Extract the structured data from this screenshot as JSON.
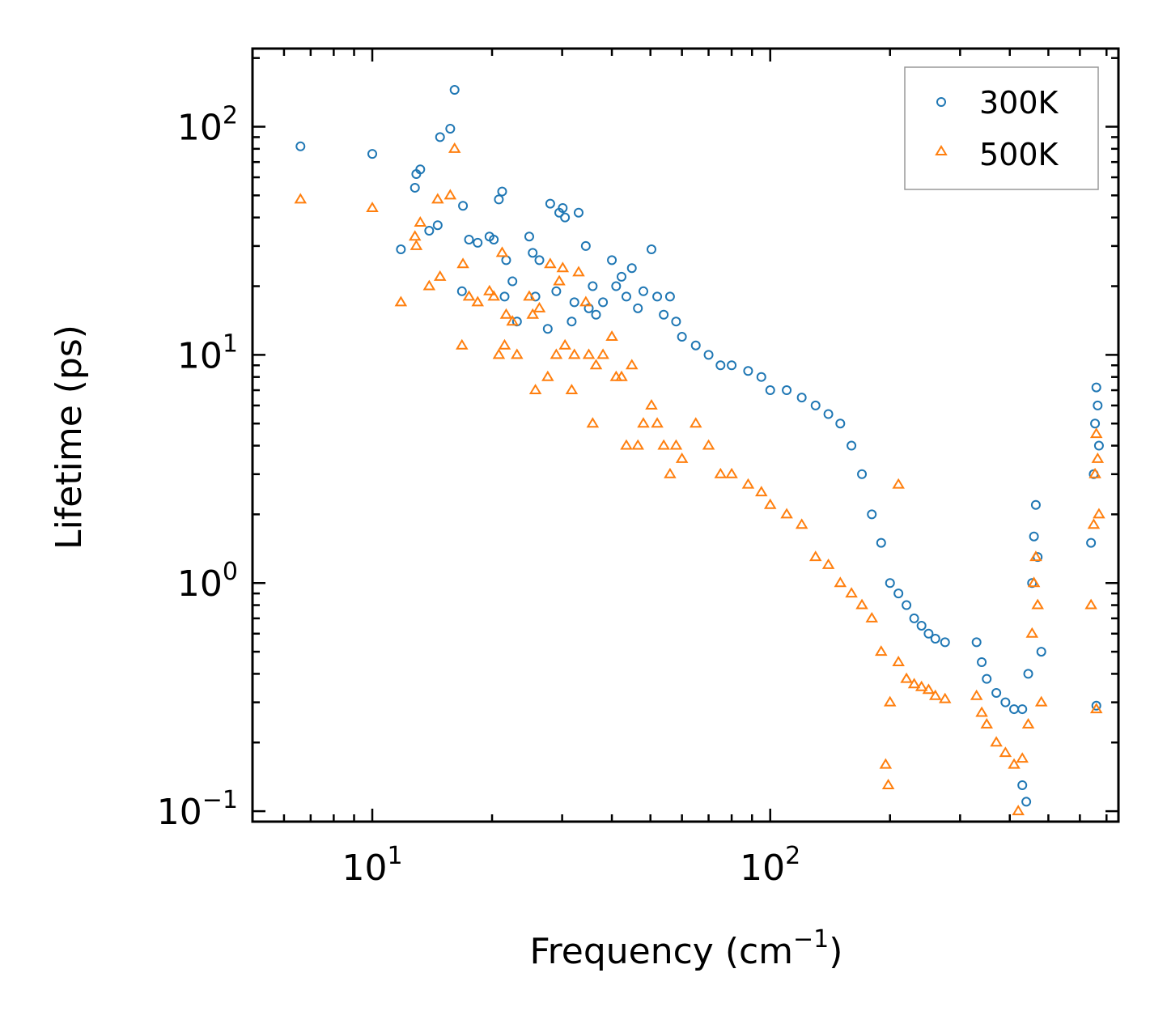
{
  "chart_data": {
    "type": "scatter",
    "title": "",
    "xscale": "log",
    "yscale": "log",
    "xlabel_main": "Frequency (cm",
    "xlabel_sup": "−1",
    "xlabel_end": ")",
    "ylabel": "Lifetime (ps)",
    "xlim": [
      5,
      750
    ],
    "ylim": [
      0.09,
      220
    ],
    "x_major_ticks": [
      10,
      100
    ],
    "x_tick_labels": [
      {
        "base": "10",
        "exp": "1"
      },
      {
        "base": "10",
        "exp": "2"
      }
    ],
    "y_major_ticks": [
      0.1,
      1,
      10,
      100
    ],
    "y_tick_labels": [
      {
        "base": "10",
        "exp": "−1"
      },
      {
        "base": "10",
        "exp": "0"
      },
      {
        "base": "10",
        "exp": "1"
      },
      {
        "base": "10",
        "exp": "2"
      }
    ],
    "legend_position": "top-right",
    "series": [
      {
        "name": "300K",
        "marker": "circle",
        "color": "#1f77b4",
        "points": [
          [
            6.6,
            82
          ],
          [
            10,
            76
          ],
          [
            11.8,
            29
          ],
          [
            12.8,
            54
          ],
          [
            12.9,
            62
          ],
          [
            13.2,
            65
          ],
          [
            13.9,
            35
          ],
          [
            14.6,
            37
          ],
          [
            14.8,
            90
          ],
          [
            15.7,
            98
          ],
          [
            16.1,
            145
          ],
          [
            16.8,
            19
          ],
          [
            16.9,
            45
          ],
          [
            17.5,
            32
          ],
          [
            18.4,
            31
          ],
          [
            19.7,
            33
          ],
          [
            20.2,
            32
          ],
          [
            20.8,
            48
          ],
          [
            21.2,
            52
          ],
          [
            21.5,
            18
          ],
          [
            21.7,
            26
          ],
          [
            22.5,
            21
          ],
          [
            23.1,
            14
          ],
          [
            24.8,
            33
          ],
          [
            25.3,
            28
          ],
          [
            25.7,
            18
          ],
          [
            26.3,
            26
          ],
          [
            27.6,
            13
          ],
          [
            28,
            46
          ],
          [
            29,
            19
          ],
          [
            29.5,
            42
          ],
          [
            30.1,
            44
          ],
          [
            30.5,
            40
          ],
          [
            31.7,
            14
          ],
          [
            32.2,
            17
          ],
          [
            33,
            42
          ],
          [
            34.4,
            30
          ],
          [
            35,
            16
          ],
          [
            35.8,
            20
          ],
          [
            36.5,
            15
          ],
          [
            38,
            17
          ],
          [
            40,
            26
          ],
          [
            41,
            20
          ],
          [
            42.3,
            22
          ],
          [
            43.5,
            18
          ],
          [
            44.9,
            24
          ],
          [
            46.5,
            16
          ],
          [
            48,
            19
          ],
          [
            50.3,
            29
          ],
          [
            52,
            18
          ],
          [
            54,
            15
          ],
          [
            56,
            18
          ],
          [
            58,
            14
          ],
          [
            60,
            12
          ],
          [
            65,
            11
          ],
          [
            70,
            10
          ],
          [
            75,
            9
          ],
          [
            80,
            9
          ],
          [
            88,
            8.5
          ],
          [
            95,
            8
          ],
          [
            100,
            7
          ],
          [
            110,
            7
          ],
          [
            120,
            6.5
          ],
          [
            130,
            6
          ],
          [
            140,
            5.5
          ],
          [
            150,
            5
          ],
          [
            160,
            4
          ],
          [
            170,
            3
          ],
          [
            180,
            2
          ],
          [
            190,
            1.5
          ],
          [
            200,
            1
          ],
          [
            210,
            0.9
          ],
          [
            220,
            0.8
          ],
          [
            230,
            0.7
          ],
          [
            240,
            0.65
          ],
          [
            250,
            0.6
          ],
          [
            260,
            0.57
          ],
          [
            275,
            0.55
          ],
          [
            330,
            0.55
          ],
          [
            340,
            0.45
          ],
          [
            350,
            0.38
          ],
          [
            370,
            0.33
          ],
          [
            390,
            0.3
          ],
          [
            410,
            0.28
          ],
          [
            430,
            0.28
          ],
          [
            445,
            0.4
          ],
          [
            455,
            1
          ],
          [
            460,
            1.6
          ],
          [
            465,
            2.2
          ],
          [
            470,
            1.3
          ],
          [
            480,
            0.5
          ],
          [
            430,
            0.13
          ],
          [
            440,
            0.11
          ],
          [
            640,
            1.5
          ],
          [
            650,
            3
          ],
          [
            655,
            5
          ],
          [
            660,
            7.2
          ],
          [
            665,
            6
          ],
          [
            670,
            4
          ],
          [
            660,
            0.29
          ]
        ]
      },
      {
        "name": "500K",
        "marker": "triangle",
        "color": "#ff7f0e",
        "points": [
          [
            6.6,
            48
          ],
          [
            10,
            44
          ],
          [
            11.8,
            17
          ],
          [
            12.8,
            33
          ],
          [
            12.9,
            30
          ],
          [
            13.2,
            38
          ],
          [
            13.9,
            20
          ],
          [
            14.6,
            48
          ],
          [
            14.8,
            22
          ],
          [
            15.7,
            50
          ],
          [
            16.1,
            80
          ],
          [
            16.8,
            11
          ],
          [
            16.9,
            25
          ],
          [
            17.5,
            18
          ],
          [
            18.4,
            17
          ],
          [
            19.7,
            19
          ],
          [
            20.2,
            18
          ],
          [
            20.8,
            10
          ],
          [
            21.2,
            28
          ],
          [
            21.5,
            11
          ],
          [
            21.7,
            15
          ],
          [
            22.5,
            14
          ],
          [
            23.1,
            10
          ],
          [
            24.8,
            18
          ],
          [
            25.3,
            15
          ],
          [
            25.7,
            7
          ],
          [
            26.3,
            16
          ],
          [
            27.6,
            8
          ],
          [
            28,
            25
          ],
          [
            29,
            10
          ],
          [
            29.5,
            21
          ],
          [
            30.1,
            24
          ],
          [
            30.5,
            11
          ],
          [
            31.7,
            7
          ],
          [
            32.2,
            10
          ],
          [
            33,
            23
          ],
          [
            34.4,
            17
          ],
          [
            35,
            10
          ],
          [
            35.8,
            5
          ],
          [
            36.5,
            9
          ],
          [
            38,
            10
          ],
          [
            40,
            12
          ],
          [
            41,
            8
          ],
          [
            42.3,
            8
          ],
          [
            43.5,
            4
          ],
          [
            44.9,
            9
          ],
          [
            46.5,
            4
          ],
          [
            48,
            5
          ],
          [
            50.3,
            6
          ],
          [
            52,
            5
          ],
          [
            54,
            4
          ],
          [
            56,
            3
          ],
          [
            58,
            4
          ],
          [
            60,
            3.5
          ],
          [
            65,
            5
          ],
          [
            70,
            4
          ],
          [
            75,
            3
          ],
          [
            80,
            3
          ],
          [
            88,
            2.7
          ],
          [
            95,
            2.5
          ],
          [
            100,
            2.2
          ],
          [
            110,
            2
          ],
          [
            120,
            1.8
          ],
          [
            130,
            1.3
          ],
          [
            140,
            1.2
          ],
          [
            150,
            1
          ],
          [
            160,
            0.9
          ],
          [
            170,
            0.8
          ],
          [
            180,
            0.7
          ],
          [
            190,
            0.5
          ],
          [
            200,
            0.3
          ],
          [
            195,
            0.16
          ],
          [
            198,
            0.13
          ],
          [
            210,
            0.45
          ],
          [
            220,
            0.38
          ],
          [
            230,
            0.36
          ],
          [
            240,
            0.35
          ],
          [
            250,
            0.34
          ],
          [
            260,
            0.32
          ],
          [
            275,
            0.31
          ],
          [
            210,
            2.7
          ],
          [
            330,
            0.32
          ],
          [
            340,
            0.27
          ],
          [
            350,
            0.24
          ],
          [
            370,
            0.2
          ],
          [
            390,
            0.18
          ],
          [
            410,
            0.16
          ],
          [
            420,
            0.1
          ],
          [
            430,
            0.17
          ],
          [
            445,
            0.24
          ],
          [
            455,
            0.6
          ],
          [
            460,
            1
          ],
          [
            465,
            1.3
          ],
          [
            470,
            0.8
          ],
          [
            480,
            0.3
          ],
          [
            640,
            0.8
          ],
          [
            650,
            1.8
          ],
          [
            655,
            3
          ],
          [
            660,
            4.5
          ],
          [
            665,
            3.5
          ],
          [
            670,
            2
          ],
          [
            660,
            0.28
          ]
        ]
      }
    ]
  }
}
